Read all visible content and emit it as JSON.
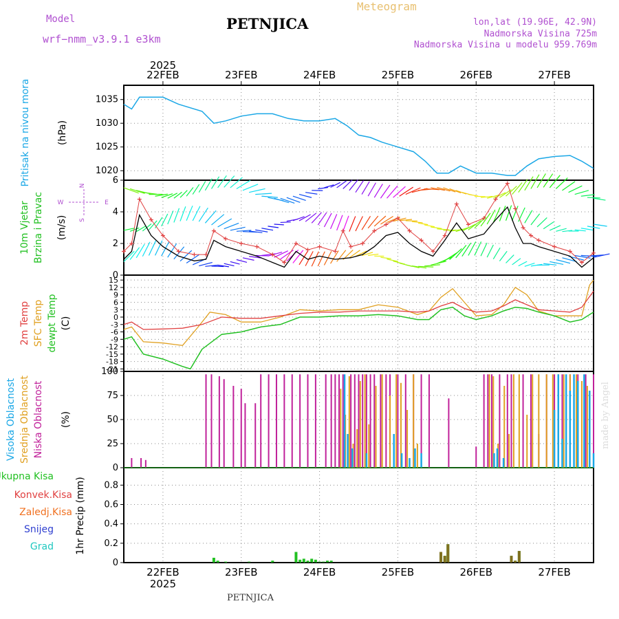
{
  "header": {
    "model_label": "Model",
    "model_name": "wrf−nmm_v3.9.1  e3km",
    "station": "PETNJICA",
    "product": "Meteogram",
    "coords": "lon,lat (19.96E, 42.9N)",
    "elevation": "Nadmorska Visina 725m",
    "model_elevation": "Nadmorska Visina u modelu 959.769m",
    "footer_station": "PETNJICA",
    "watermark": "made by Angel"
  },
  "colors": {
    "pressure": "#1aa7e6",
    "wind_speed": "#000000",
    "wind_gust": "#e04040",
    "t2m": "#e04040",
    "sfc": "#e0a020",
    "dewpt": "#22c022",
    "cloud_high": "#1aa7e6",
    "cloud_mid": "#e0a020",
    "cloud_low": "#c0209a",
    "precip_total": "#22c022",
    "precip_conv": "#e04040",
    "precip_frozen": "#f07020",
    "snow": "#3040d0",
    "graupel": "#20c8c0",
    "grid": "#888888",
    "frame": "#000000"
  },
  "chart_data": [
    {
      "type": "line",
      "id": "pressure",
      "title": "Pritisak na nivou mora",
      "ylabel": "(hPa)",
      "ylim": [
        1018,
        1038
      ],
      "yticks": [
        1020,
        1025,
        1030,
        1035
      ],
      "x_start_day": 21.5,
      "x_end_day": 27.5,
      "top_year": "2025",
      "days": [
        "22FEB",
        "23FEB",
        "24FEB",
        "25FEB",
        "26FEB",
        "27FEB"
      ],
      "day_positions": [
        22,
        23,
        24,
        25,
        26,
        27
      ],
      "series": [
        {
          "name": "MSLP",
          "x": [
            21.5,
            21.6,
            21.7,
            21.8,
            22.0,
            22.2,
            22.5,
            22.65,
            22.8,
            23.0,
            23.2,
            23.4,
            23.6,
            23.8,
            24.0,
            24.2,
            24.35,
            24.5,
            24.65,
            24.8,
            25.0,
            25.2,
            25.35,
            25.5,
            25.65,
            25.8,
            26.0,
            26.2,
            26.4,
            26.5,
            26.65,
            26.8,
            27.0,
            27.2,
            27.35,
            27.5
          ],
          "values": [
            1034,
            1033,
            1035.5,
            1035.5,
            1035.5,
            1034,
            1032.5,
            1030,
            1030.5,
            1031.5,
            1032,
            1032,
            1031,
            1030.5,
            1030.5,
            1031,
            1029.5,
            1027.5,
            1027,
            1026,
            1025,
            1024,
            1022,
            1019.5,
            1019.5,
            1021,
            1019.5,
            1019.5,
            1019,
            1019,
            1021,
            1022.5,
            1023,
            1023.2,
            1022,
            1020.5
          ]
        }
      ]
    },
    {
      "type": "line",
      "id": "wind",
      "title": "10m Vjetar",
      "title2": "Brzina i Pravac",
      "ylabel": "(m/s)",
      "ylim": [
        0,
        6
      ],
      "yticks": [
        0,
        2,
        4,
        6
      ],
      "compass": {
        "n": "N",
        "s": "S",
        "e": "E",
        "w": "W"
      },
      "series": [
        {
          "name": "speed",
          "x": [
            21.5,
            21.6,
            21.7,
            21.85,
            22.0,
            22.2,
            22.4,
            22.55,
            22.65,
            22.8,
            23.0,
            23.2,
            23.4,
            23.55,
            23.7,
            23.85,
            24.0,
            24.2,
            24.4,
            24.55,
            24.7,
            24.85,
            25.0,
            25.15,
            25.3,
            25.45,
            25.6,
            25.75,
            25.9,
            26.1,
            26.25,
            26.4,
            26.5,
            26.6,
            26.7,
            26.8,
            27.0,
            27.2,
            27.35,
            27.5
          ],
          "values": [
            1.0,
            1.5,
            3.8,
            2.5,
            1.8,
            1.2,
            0.9,
            1.0,
            2.2,
            1.8,
            1.5,
            1.2,
            0.8,
            0.5,
            1.5,
            1.0,
            1.2,
            1.0,
            1.1,
            1.3,
            1.8,
            2.5,
            2.7,
            2.0,
            1.5,
            1.2,
            2.2,
            3.3,
            2.3,
            2.6,
            3.5,
            4.3,
            3.0,
            2.0,
            2.0,
            1.8,
            1.5,
            1.2,
            0.5,
            1.1
          ]
        },
        {
          "name": "gust",
          "x": [
            21.5,
            21.6,
            21.7,
            21.85,
            22.0,
            22.2,
            22.4,
            22.55,
            22.65,
            22.8,
            23.0,
            23.2,
            23.4,
            23.55,
            23.7,
            23.85,
            24.0,
            24.2,
            24.3,
            24.4,
            24.55,
            24.7,
            24.85,
            25.0,
            25.15,
            25.3,
            25.45,
            25.6,
            25.75,
            25.9,
            26.1,
            26.25,
            26.4,
            26.5,
            26.6,
            26.7,
            26.8,
            27.0,
            27.2,
            27.35,
            27.5
          ],
          "values": [
            1.5,
            2.0,
            4.8,
            3.5,
            2.5,
            1.5,
            1.3,
            1.3,
            2.8,
            2.3,
            2.0,
            1.8,
            1.3,
            0.8,
            2.0,
            1.6,
            1.8,
            1.5,
            2.8,
            1.8,
            2.0,
            2.8,
            3.2,
            3.6,
            2.8,
            2.2,
            1.5,
            2.5,
            4.5,
            3.2,
            3.6,
            4.8,
            5.8,
            4.2,
            3.0,
            2.5,
            2.2,
            1.8,
            1.5,
            0.8,
            1.4
          ]
        }
      ]
    },
    {
      "type": "line",
      "id": "temperature",
      "titles": [
        "2m Temp",
        "SFC Temp",
        "dewpt Temp"
      ],
      "ylabel": "(C)",
      "ylim": [
        -22,
        17
      ],
      "yticks": [
        -21,
        -18,
        -15,
        -12,
        -9,
        -6,
        -3,
        0,
        3,
        6,
        9,
        12,
        15
      ],
      "series": [
        {
          "name": "2m Temp",
          "x": [
            21.5,
            21.6,
            21.75,
            22.0,
            22.25,
            22.5,
            22.75,
            23.0,
            23.25,
            23.5,
            23.75,
            24.0,
            24.25,
            24.5,
            24.75,
            25.0,
            25.25,
            25.4,
            25.55,
            25.7,
            25.85,
            26.0,
            26.2,
            26.35,
            26.5,
            26.65,
            26.8,
            27.0,
            27.2,
            27.35,
            27.5
          ],
          "values": [
            -3,
            -2,
            -5,
            -4.8,
            -4.5,
            -3,
            0,
            -0.5,
            -0.5,
            0.5,
            1.5,
            2,
            2,
            2.5,
            2.5,
            2.5,
            2,
            2.5,
            4.5,
            6,
            3.5,
            2,
            2.5,
            4.5,
            7,
            5,
            3,
            2.5,
            2,
            4,
            10.5
          ]
        },
        {
          "name": "SFC Temp",
          "x": [
            21.5,
            21.6,
            21.75,
            22.0,
            22.25,
            22.45,
            22.6,
            22.8,
            23.0,
            23.25,
            23.5,
            23.75,
            24.0,
            24.25,
            24.5,
            24.75,
            25.0,
            25.25,
            25.4,
            25.55,
            25.7,
            25.85,
            26.0,
            26.2,
            26.35,
            26.5,
            26.65,
            26.8,
            27.0,
            27.2,
            27.35,
            27.45,
            27.5
          ],
          "values": [
            -5,
            -4,
            -10,
            -10.5,
            -11.5,
            -4,
            2,
            1,
            -2,
            -2,
            0,
            3,
            2.5,
            3,
            3,
            5,
            4,
            1,
            2.5,
            8,
            11.5,
            6,
            0.5,
            1,
            5,
            12,
            9,
            2.5,
            0.5,
            0.5,
            0.5,
            13,
            15
          ]
        },
        {
          "name": "dewpt Temp",
          "x": [
            21.5,
            21.6,
            21.75,
            22.0,
            22.25,
            22.35,
            22.5,
            22.75,
            23.0,
            23.25,
            23.5,
            23.75,
            24.0,
            24.25,
            24.5,
            24.75,
            25.0,
            25.25,
            25.4,
            25.55,
            25.7,
            25.85,
            26.0,
            26.2,
            26.35,
            26.5,
            26.65,
            26.8,
            27.0,
            27.2,
            27.35,
            27.5
          ],
          "values": [
            -9,
            -8,
            -15,
            -17,
            -20,
            -21,
            -13,
            -7,
            -6,
            -4,
            -3,
            0,
            0,
            0.5,
            0.5,
            1,
            0.5,
            -1,
            -1,
            3,
            4,
            0.5,
            -1,
            0.5,
            2.5,
            4,
            3.5,
            2,
            0.5,
            -2,
            -1,
            2
          ]
        }
      ]
    },
    {
      "type": "bar",
      "id": "cloud",
      "titles": [
        "Visoka Oblacnost",
        "Srednja Oblacnost",
        "Niska Oblacnost"
      ],
      "ylabel": "(%)",
      "ylim": [
        0,
        100
      ],
      "yticks": [
        0,
        25,
        50,
        75,
        100
      ],
      "series": [
        {
          "name": "low",
          "x": [
            21.6,
            21.72,
            21.78,
            22.55,
            22.62,
            22.72,
            22.78,
            22.9,
            23.0,
            23.05,
            23.18,
            23.25,
            23.35,
            23.45,
            23.55,
            23.65,
            23.75,
            23.85,
            23.95,
            24.08,
            24.15,
            24.2,
            24.25,
            24.3,
            24.4,
            24.45,
            24.5,
            24.55,
            24.6,
            24.65,
            24.7,
            24.78,
            24.85,
            24.9,
            25.0,
            25.1,
            25.2,
            25.3,
            25.4,
            25.65,
            26.0,
            26.1,
            26.15,
            26.2,
            26.3,
            26.4,
            26.45,
            26.6,
            26.7,
            26.8,
            26.9,
            27.0,
            27.1,
            27.2,
            27.3,
            27.4,
            27.5
          ],
          "values": [
            10,
            10,
            8,
            97,
            97,
            95,
            92,
            85,
            82,
            67,
            67,
            97,
            97,
            97,
            97,
            97,
            97,
            97,
            97,
            97,
            97,
            97,
            97,
            97,
            97,
            97,
            97,
            97,
            97,
            97,
            97,
            97,
            97,
            97,
            97,
            97,
            97,
            97,
            97,
            72,
            22,
            97,
            97,
            97,
            97,
            97,
            97,
            97,
            97,
            35,
            97,
            97,
            97,
            97,
            97,
            97,
            97
          ]
        },
        {
          "name": "mid",
          "x": [
            24.27,
            24.33,
            24.38,
            24.43,
            24.48,
            24.52,
            24.58,
            24.63,
            24.72,
            24.8,
            24.9,
            24.98,
            25.04,
            25.12,
            25.2,
            25.25,
            26.17,
            26.22,
            26.28,
            26.36,
            26.42,
            26.48,
            26.55,
            26.65,
            26.72,
            26.8,
            26.9,
            26.98,
            27.05,
            27.12,
            27.2,
            27.28,
            27.35,
            27.42
          ],
          "values": [
            82,
            55,
            95,
            25,
            40,
            90,
            97,
            45,
            85,
            97,
            75,
            97,
            88,
            60,
            97,
            25,
            97,
            95,
            25,
            85,
            35,
            97,
            97,
            55,
            97,
            97,
            97,
            97,
            97,
            97,
            97,
            97,
            90,
            85
          ]
        },
        {
          "name": "high",
          "x": [
            24.32,
            24.36,
            24.42,
            24.6,
            24.95,
            25.05,
            25.15,
            25.22,
            25.3,
            26.23,
            26.27,
            26.35,
            27.0,
            27.05,
            27.1,
            27.15,
            27.2,
            27.25,
            27.3,
            27.38,
            27.45,
            27.5
          ],
          "values": [
            97,
            35,
            20,
            15,
            35,
            15,
            10,
            20,
            15,
            15,
            20,
            10,
            60,
            97,
            30,
            97,
            80,
            97,
            90,
            97,
            80,
            15
          ]
        }
      ]
    },
    {
      "type": "bar",
      "id": "precip",
      "titles": [
        "Ukupna Kisa",
        "Konvek.Kisa",
        "Zaledj.Kisa",
        "Snijeg",
        "Grad"
      ],
      "ylabel": "1hr Precip (mm)",
      "ylim": [
        0,
        0.98
      ],
      "yticks": [
        0,
        0.2,
        0.4,
        0.6,
        0.8
      ],
      "ytick_labels": [
        "0",
        "0.2",
        "0.4",
        "0.6",
        "0.8"
      ],
      "bottom_days": [
        "22FEB",
        "23FEB",
        "24FEB",
        "25FEB",
        "26FEB",
        "27FEB"
      ],
      "bottom_year": "2025",
      "series": [
        {
          "name": "total",
          "x": [
            22.65,
            22.7,
            22.8,
            23.1,
            23.4,
            23.7,
            23.75,
            23.8,
            23.85,
            23.9,
            23.95,
            24.0,
            24.05,
            24.1,
            24.15,
            25.55,
            25.6,
            25.64,
            26.45,
            26.5,
            26.55
          ],
          "values": [
            0.05,
            0.02,
            0.01,
            0.01,
            0.02,
            0.11,
            0.03,
            0.04,
            0.02,
            0.04,
            0.03,
            0.01,
            0.01,
            0.02,
            0.02,
            0.11,
            0.07,
            0.19,
            0.07,
            0.02,
            0.12
          ]
        },
        {
          "name": "frozen",
          "x": [
            25.55,
            25.6,
            25.64,
            26.45,
            26.5,
            26.55
          ],
          "values": [
            0.11,
            0.07,
            0.19,
            0.07,
            0.02,
            0.12
          ]
        }
      ]
    }
  ]
}
